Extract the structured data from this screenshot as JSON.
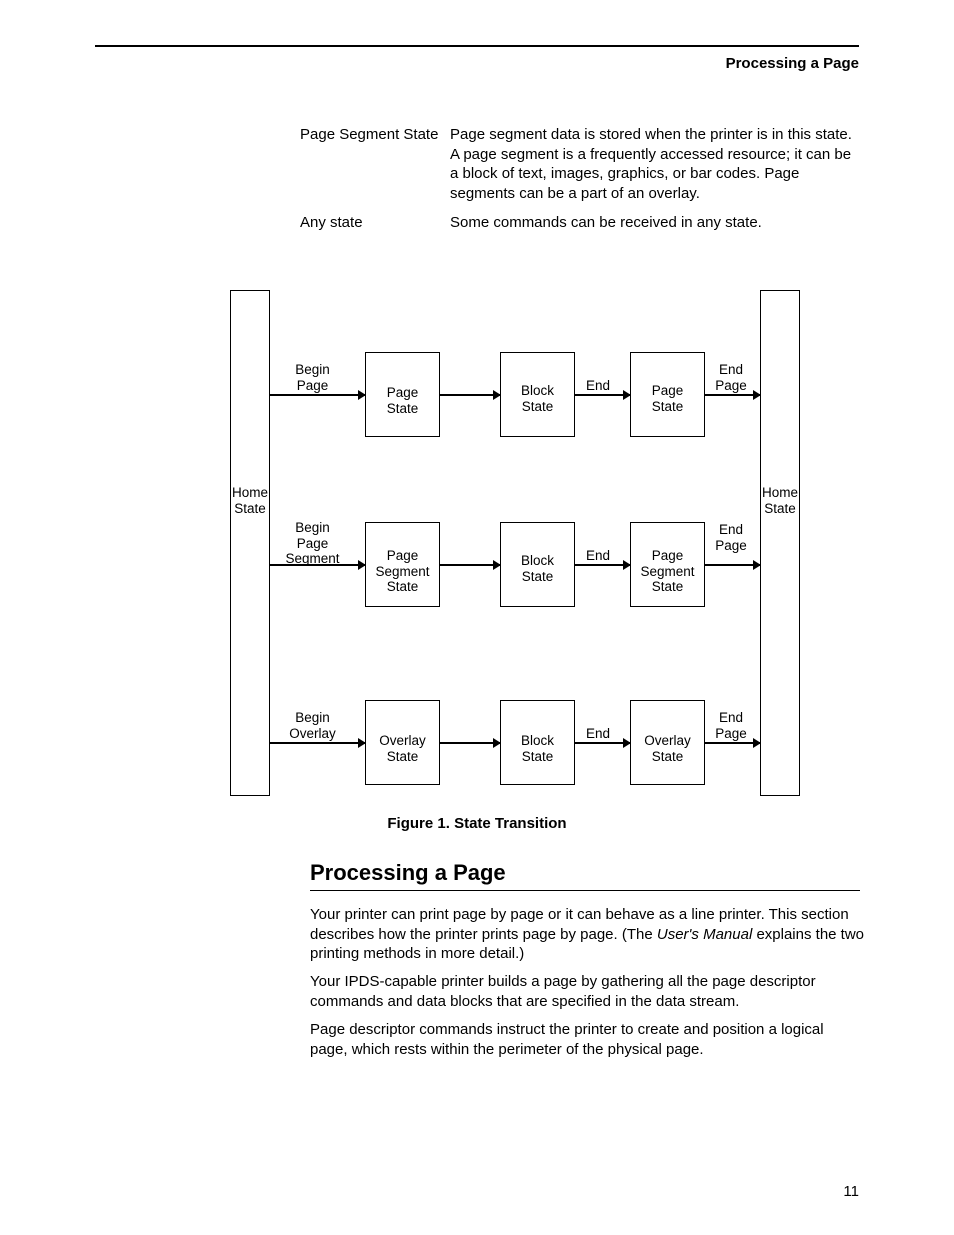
{
  "header": {
    "title": "Processing a Page"
  },
  "definitions": [
    {
      "term": "Page Segment State",
      "desc": "Page segment data is stored when the printer is in this state. A page segment is a frequently accessed resource; it can be a block of text, images, graphics, or bar codes. Page segments can be a part of an overlay."
    },
    {
      "term": "Any state",
      "desc": "Some commands can be received in any state."
    }
  ],
  "diagram": {
    "side_left": "Home\nState",
    "side_right": "Home\nState",
    "rows": [
      {
        "begin": "Begin\nPage",
        "b1": "Page\nState",
        "b2": "Block\nState",
        "mid": "End",
        "b3": "Page\nState",
        "end": "End\nPage"
      },
      {
        "begin": "Begin\nPage\nSegment",
        "b1": "Page\nSegment\nState",
        "b2": "Block\nState",
        "mid": "End",
        "b3": "Page\nSegment\nState",
        "end": "End\nPage"
      },
      {
        "begin": "Begin\nOverlay",
        "b1": "Overlay\nState",
        "b2": "Block\nState",
        "mid": "End",
        "b3": "Overlay\nState",
        "end": "End\nPage"
      }
    ],
    "caption": "Figure 1. State Transition"
  },
  "section": {
    "heading": "Processing a Page",
    "p1a": "Your printer can print page by page or it can behave as a line printer. This section describes how the printer prints page by page. (The ",
    "p1_em": "User's Manual",
    "p1b": " explains the two printing methods in more detail.)",
    "p2": "Your IPDS-capable printer builds a page by gathering all the page descriptor commands and data blocks that are specified in the data stream.",
    "p3": "Page descriptor commands instruct the printer to create and position a logical page, which rests within the perimeter of the physical page."
  },
  "page_number": "11"
}
